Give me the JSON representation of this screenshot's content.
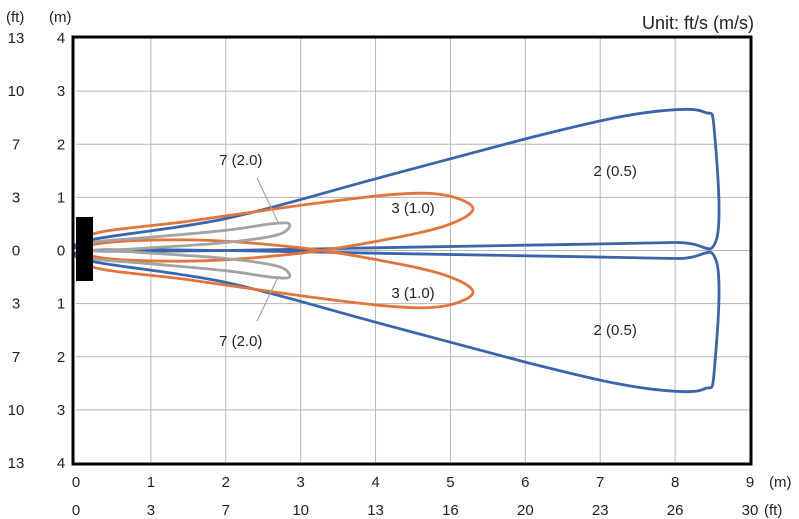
{
  "chart_data": {
    "type": "line",
    "title": "",
    "unit_label": "Unit: ft/s (m/s)",
    "x_unit_m": "(m)",
    "x_unit_ft": "(ft)",
    "y_unit_ft": "(ft)",
    "y_unit_m": "(m)",
    "xlim": [
      0,
      9
    ],
    "ylim": [
      -4,
      4
    ],
    "grid": true,
    "x_ticks_m": [
      "0",
      "1",
      "2",
      "3",
      "4",
      "5",
      "6",
      "7",
      "8",
      "9"
    ],
    "x_ticks_ft": [
      "0",
      "3",
      "7",
      "10",
      "13",
      "16",
      "20",
      "23",
      "26",
      "30"
    ],
    "y_ticks_m": [
      "4",
      "3",
      "2",
      "1",
      "0",
      "1",
      "2",
      "3",
      "4"
    ],
    "y_ticks_ft": [
      "13",
      "10",
      "7",
      "3",
      "0",
      "3",
      "7",
      "10",
      "13"
    ],
    "series": [
      {
        "label": "2 (0.5)",
        "color": "#3a65ad",
        "lobes": [
          {
            "x": [
              0.2,
              2.0,
              4.0,
              6.0,
              7.2,
              8.0,
              8.4,
              8.52,
              8.55,
              8.0,
              6.0,
              4.0,
              2.0,
              0.2
            ],
            "y": [
              0.2,
              0.6,
              1.35,
              2.1,
              2.5,
              2.65,
              2.6,
              2.3,
              0.2,
              0.15,
              0.1,
              0.05,
              0.0,
              0.0
            ]
          },
          {
            "x": [
              0.2,
              2.0,
              4.0,
              6.0,
              7.2,
              8.0,
              8.4,
              8.52,
              8.55,
              8.0,
              6.0,
              4.0,
              2.0,
              0.2
            ],
            "y": [
              -0.2,
              -0.6,
              -1.35,
              -2.1,
              -2.5,
              -2.65,
              -2.6,
              -2.3,
              -0.2,
              -0.15,
              -0.1,
              -0.05,
              0.0,
              0.0
            ]
          }
        ]
      },
      {
        "label": "3 (1.0)",
        "color": "#e0763b",
        "lobes": [
          {
            "x": [
              0.2,
              1.5,
              3.0,
              4.2,
              4.9,
              5.3,
              5.0,
              4.3,
              3.0,
              1.5,
              0.2
            ],
            "y": [
              0.3,
              0.55,
              0.85,
              1.05,
              1.05,
              0.8,
              0.5,
              0.25,
              -0.05,
              -0.2,
              -0.1
            ]
          },
          {
            "x": [
              0.2,
              1.5,
              3.0,
              4.2,
              4.9,
              5.3,
              5.0,
              4.3,
              3.0,
              1.5,
              0.2
            ],
            "y": [
              -0.3,
              -0.55,
              -0.85,
              -1.05,
              -1.05,
              -0.8,
              -0.5,
              -0.25,
              0.05,
              0.2,
              0.1
            ]
          }
        ]
      },
      {
        "label": "7 (2.0)",
        "color": "#a3a3a3",
        "lobes": [
          {
            "x": [
              0.2,
              1.0,
              2.0,
              2.6,
              2.85,
              2.7,
              2.0,
              1.0,
              0.2
            ],
            "y": [
              0.15,
              0.25,
              0.38,
              0.5,
              0.5,
              0.3,
              0.15,
              0.05,
              0.0
            ]
          },
          {
            "x": [
              0.2,
              1.0,
              2.0,
              2.6,
              2.85,
              2.7,
              2.0,
              1.0,
              0.2
            ],
            "y": [
              -0.15,
              -0.25,
              -0.38,
              -0.5,
              -0.5,
              -0.3,
              -0.15,
              -0.05,
              0.0
            ]
          }
        ]
      }
    ],
    "annotations": [
      {
        "text": "2 (0.5)",
        "x": 7.2,
        "y": 1.5
      },
      {
        "text": "2 (0.5)",
        "x": 7.2,
        "y": -1.5
      },
      {
        "text": "3 (1.0)",
        "x": 4.5,
        "y": 0.8
      },
      {
        "text": "3 (1.0)",
        "x": 4.5,
        "y": -0.8
      },
      {
        "text": "7 (2.0)",
        "x": 2.2,
        "y": 1.7
      },
      {
        "text": "7 (2.0)",
        "x": 2.2,
        "y": -1.7
      }
    ]
  }
}
